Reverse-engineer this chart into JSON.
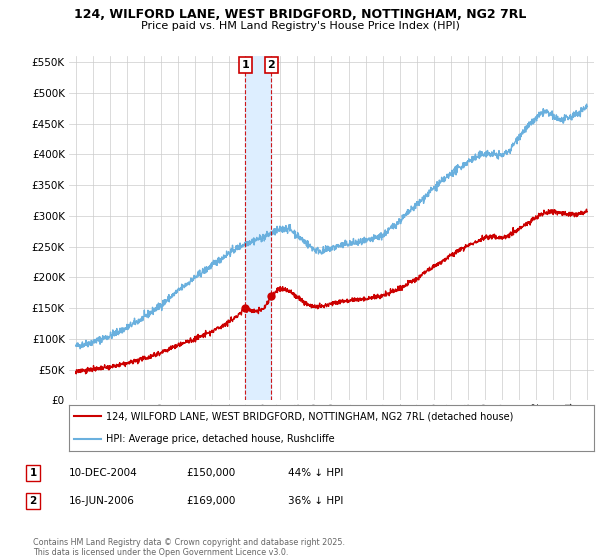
{
  "title": "124, WILFORD LANE, WEST BRIDGFORD, NOTTINGHAM, NG2 7RL",
  "subtitle": "Price paid vs. HM Land Registry's House Price Index (HPI)",
  "hpi_color": "#6ab0de",
  "price_color": "#cc0000",
  "vline_color": "#cc0000",
  "shade_color": "#ddeeff",
  "background_color": "#ffffff",
  "grid_color": "#cccccc",
  "ylim": [
    0,
    560000
  ],
  "yticks": [
    0,
    50000,
    100000,
    150000,
    200000,
    250000,
    300000,
    350000,
    400000,
    450000,
    500000,
    550000
  ],
  "purchases": [
    {
      "date_num": 2004.94,
      "price": 150000,
      "label": "1"
    },
    {
      "date_num": 2006.46,
      "price": 169000,
      "label": "2"
    }
  ],
  "legend_entries": [
    {
      "label": "124, WILFORD LANE, WEST BRIDGFORD, NOTTINGHAM, NG2 7RL (detached house)",
      "color": "#cc0000"
    },
    {
      "label": "HPI: Average price, detached house, Rushcliffe",
      "color": "#6ab0de"
    }
  ],
  "table_rows": [
    {
      "num": "1",
      "date": "10-DEC-2004",
      "price": "£150,000",
      "hpi": "44% ↓ HPI"
    },
    {
      "num": "2",
      "date": "16-JUN-2006",
      "price": "£169,000",
      "hpi": "36% ↓ HPI"
    }
  ],
  "footnote": "Contains HM Land Registry data © Crown copyright and database right 2025.\nThis data is licensed under the Open Government Licence v3.0.",
  "hpi_waypoints_x": [
    1995,
    1996,
    1997,
    1998,
    1999,
    2000,
    2001,
    2002,
    2003,
    2004,
    2004.5,
    2005,
    2006,
    2006.5,
    2007,
    2007.5,
    2008,
    2009,
    2009.5,
    2010,
    2011,
    2012,
    2013,
    2014,
    2015,
    2016,
    2017,
    2018,
    2019,
    2019.5,
    2020,
    2020.5,
    2021,
    2022,
    2022.5,
    2023,
    2023.5,
    2024,
    2024.5,
    2025
  ],
  "hpi_waypoints_y": [
    88000,
    95000,
    105000,
    118000,
    135000,
    155000,
    178000,
    200000,
    220000,
    240000,
    248000,
    256000,
    265000,
    272000,
    278000,
    280000,
    268000,
    245000,
    242000,
    248000,
    255000,
    258000,
    268000,
    292000,
    318000,
    345000,
    368000,
    388000,
    402000,
    400000,
    398000,
    408000,
    430000,
    458000,
    470000,
    462000,
    455000,
    460000,
    468000,
    478000
  ],
  "price_waypoints_x": [
    1995,
    1996,
    1997,
    1998,
    1999,
    2000,
    2001,
    2002,
    2003,
    2004,
    2004.5,
    2004.94,
    2005,
    2005.5,
    2006,
    2006.46,
    2006.8,
    2007,
    2007.5,
    2008,
    2008.5,
    2009,
    2009.5,
    2010,
    2011,
    2012,
    2013,
    2014,
    2015,
    2016,
    2017,
    2018,
    2019,
    2019.5,
    2020,
    2021,
    2022,
    2022.5,
    2023,
    2023.5,
    2024,
    2024.5,
    2025
  ],
  "price_waypoints_y": [
    48000,
    50000,
    54000,
    60000,
    68000,
    78000,
    90000,
    100000,
    112000,
    128000,
    138000,
    150000,
    148000,
    145000,
    148000,
    169000,
    178000,
    182000,
    178000,
    168000,
    158000,
    152000,
    152000,
    158000,
    163000,
    165000,
    170000,
    182000,
    198000,
    218000,
    235000,
    252000,
    265000,
    266000,
    264000,
    278000,
    298000,
    305000,
    308000,
    305000,
    302000,
    303000,
    308000
  ]
}
